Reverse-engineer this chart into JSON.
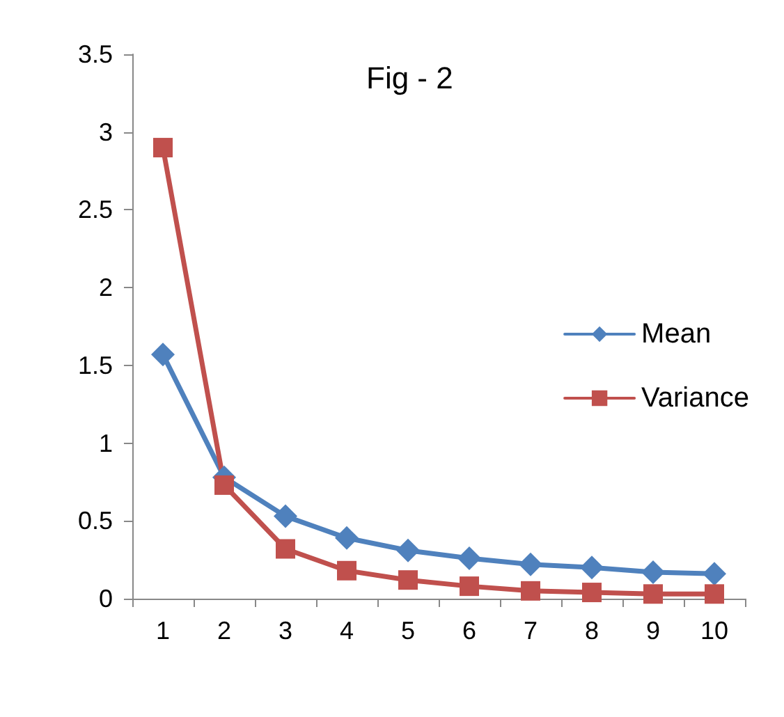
{
  "chart_data": {
    "type": "line",
    "title": "Fig - 2",
    "categories": [
      "1",
      "2",
      "3",
      "4",
      "5",
      "6",
      "7",
      "8",
      "9",
      "10"
    ],
    "series": [
      {
        "name": "Mean",
        "color": "#4f81bd",
        "marker": "diamond",
        "values": [
          1.57,
          0.78,
          0.53,
          0.39,
          0.31,
          0.26,
          0.22,
          0.2,
          0.17,
          0.16
        ]
      },
      {
        "name": "Variance",
        "color": "#c0504d",
        "marker": "square",
        "values": [
          2.9,
          0.73,
          0.32,
          0.18,
          0.12,
          0.08,
          0.05,
          0.04,
          0.03,
          0.03
        ]
      }
    ],
    "ylim": [
      0,
      3.5
    ],
    "yticks": [
      0,
      0.5,
      1,
      1.5,
      2,
      2.5,
      3,
      3.5
    ],
    "grid": false,
    "legend": "right",
    "line_style": "solid"
  }
}
